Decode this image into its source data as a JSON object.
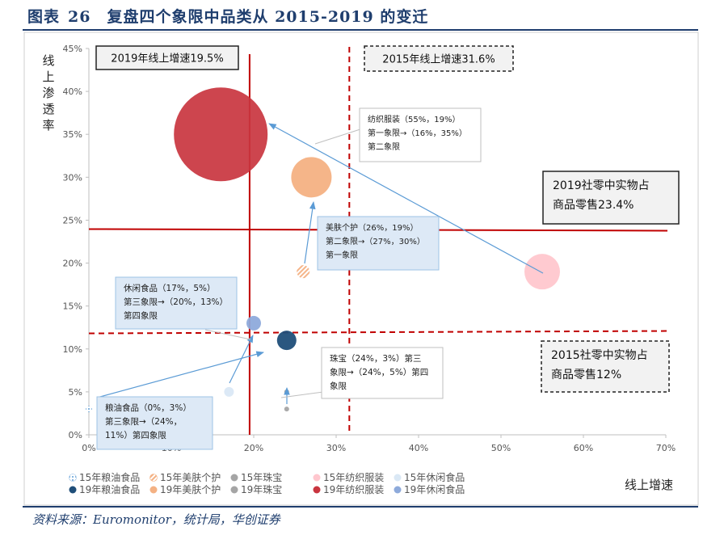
{
  "header": {
    "label": "图表",
    "number": "26",
    "title": "复盘四个象限中品类从 2015-2019 的变迁"
  },
  "source": "资料来源：Euromonitor，统计局，华创证券",
  "chart_data": {
    "type": "scatter",
    "xlabel": "线上增速",
    "ylabel": "线上渗透率",
    "xlim": [
      0,
      0.7
    ],
    "ylim": [
      0,
      0.45
    ],
    "x_ticks": [
      "0%",
      "10%",
      "20%",
      "30%",
      "40%",
      "50%",
      "60%",
      "70%"
    ],
    "y_ticks": [
      "0%",
      "5%",
      "10%",
      "15%",
      "20%",
      "25%",
      "30%",
      "35%",
      "40%",
      "45%"
    ],
    "series": [
      {
        "name": "15年粮油食品",
        "year": 2015,
        "x": 0.0,
        "y": 0.03,
        "color": "#9dc3e6",
        "pattern": "snow"
      },
      {
        "name": "15年美肤个护",
        "year": 2015,
        "x": 0.26,
        "y": 0.19,
        "color": "#f4b183",
        "pattern": "stripe"
      },
      {
        "name": "15年珠宝",
        "year": 2015,
        "x": 0.24,
        "y": 0.03,
        "color": "#a5a5a5",
        "pattern": "solid"
      },
      {
        "name": "15年纺织服装",
        "year": 2015,
        "x": 0.55,
        "y": 0.19,
        "color": "#ffc7ce",
        "pattern": "solid"
      },
      {
        "name": "15年休闲食品",
        "year": 2015,
        "x": 0.17,
        "y": 0.05,
        "color": "#dae8f5",
        "pattern": "solid"
      },
      {
        "name": "19年粮油食品",
        "year": 2019,
        "x": 0.24,
        "y": 0.11,
        "color": "#1f4e79",
        "pattern": "solid"
      },
      {
        "name": "19年美肤个护",
        "year": 2019,
        "x": 0.27,
        "y": 0.3,
        "color": "#f4b183",
        "pattern": "solid"
      },
      {
        "name": "19年珠宝",
        "year": 2019,
        "x": 0.24,
        "y": 0.05,
        "color": "#a5a5a5",
        "pattern": "solid"
      },
      {
        "name": "19年纺织服装",
        "year": 2019,
        "x": 0.16,
        "y": 0.35,
        "color": "#c9353f",
        "pattern": "solid"
      },
      {
        "name": "19年休闲食品",
        "year": 2019,
        "x": 0.2,
        "y": 0.13,
        "color": "#8eaadb",
        "pattern": "solid"
      }
    ],
    "reference_lines": [
      {
        "label": "2019年线上增速19.5%",
        "axis": "x",
        "value": 0.195,
        "style": "solid",
        "color": "#c00000"
      },
      {
        "label": "2015年线上增速31.6%",
        "axis": "x",
        "value": 0.316,
        "style": "dashed",
        "color": "#c00000"
      },
      {
        "label": "2019社零中实物占商品零售23.4%",
        "axis": "y",
        "value": 0.234,
        "style": "solid",
        "color": "#c00000"
      },
      {
        "label": "2015社零中实物占商品零售12%",
        "axis": "y",
        "value": 0.12,
        "style": "dashed",
        "color": "#c00000"
      }
    ],
    "ref_boxes": [
      {
        "lines": [
          "2019年线上增速19.5%"
        ],
        "style": "solid"
      },
      {
        "lines": [
          "2015年线上增速31.6%"
        ],
        "style": "dashed"
      },
      {
        "lines": [
          "2019社零中实物占",
          "商品零售23.4%"
        ],
        "style": "solid"
      },
      {
        "lines": [
          "2015社零中实物占",
          "商品零售12%"
        ],
        "style": "dashed"
      }
    ],
    "annotations": [
      {
        "lines": [
          "纺织服装（55%，19%）",
          "第一象限→（16%，35%）",
          "第二象限"
        ]
      },
      {
        "lines": [
          "美肤个护（26%，19%）",
          "第二象限→（27%，30%）",
          "第一象限"
        ]
      },
      {
        "lines": [
          "休闲食品（17%，5%）",
          "第三象限→（20%，13%）",
          "第四象限"
        ]
      },
      {
        "lines": [
          "珠宝（24%，3%）第三",
          "象限→（24%，5%）第四",
          "象限"
        ]
      },
      {
        "lines": [
          "粮油食品（0%，3%）",
          "第三象限→（24%，",
          "11%）第四象限"
        ]
      }
    ]
  }
}
